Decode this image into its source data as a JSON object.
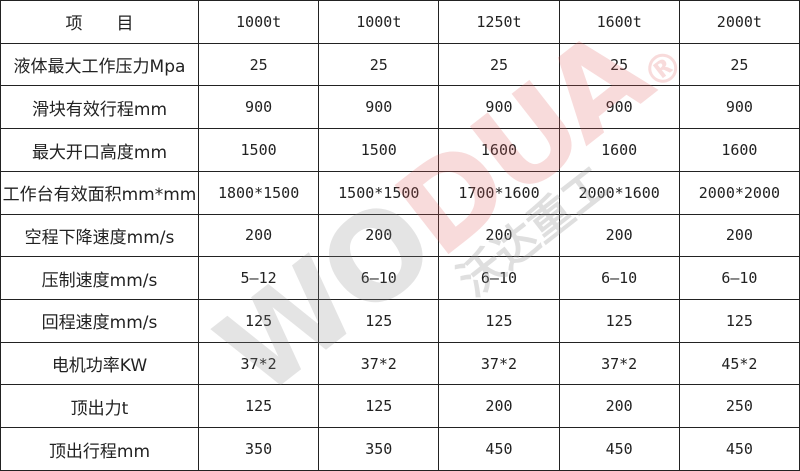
{
  "table": {
    "header": [
      "项　　目",
      "1000t",
      "1000t",
      "1250t",
      "1600t",
      "2000t"
    ],
    "rows": [
      [
        "液体最大工作压力Mpa",
        "25",
        "25",
        "25",
        "25",
        "25"
      ],
      [
        "滑块有效行程mm",
        "900",
        "900",
        "900",
        "900",
        "900"
      ],
      [
        "最大开口高度mm",
        "1500",
        "1500",
        "1600",
        "1600",
        "1600"
      ],
      [
        "工作台有效面积mm*mm",
        "1800*1500",
        "1500*1500",
        "1700*1600",
        "2000*1600",
        "2000*2000"
      ],
      [
        "空程下降速度mm/s",
        "200",
        "200",
        "200",
        "200",
        "200"
      ],
      [
        "压制速度mm/s",
        "5—12",
        "6—10",
        "6—10",
        "6—10",
        "6—10"
      ],
      [
        "回程速度mm/s",
        "125",
        "125",
        "125",
        "125",
        "125"
      ],
      [
        "电机功率KW",
        "37*2",
        "37*2",
        "37*2",
        "37*2",
        "45*2"
      ],
      [
        "顶出力t",
        "125",
        "125",
        "200",
        "200",
        "250"
      ],
      [
        "顶出行程mm",
        "350",
        "350",
        "450",
        "450",
        "450"
      ]
    ]
  },
  "watermark": {
    "logo_part1": "WO",
    "logo_part2": "DUA",
    "registered": "®",
    "company": "沃达重工",
    "colors": {
      "gray": "#888888",
      "red": "#e06060"
    }
  }
}
